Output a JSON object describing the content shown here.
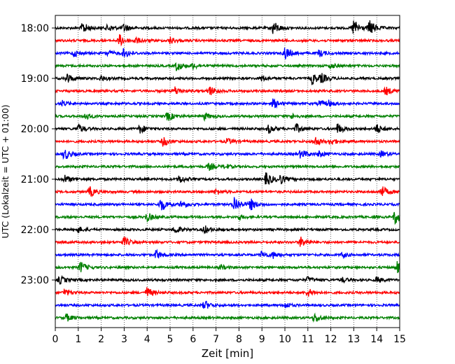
{
  "chart_data": {
    "type": "line",
    "title": "",
    "xlabel": "Zeit  [min]",
    "ylabel": "UTC (Lokalzeit = UTC + 01:00)",
    "xlim": [
      0,
      15
    ],
    "x_ticks": [
      "0",
      "1",
      "2",
      "3",
      "4",
      "5",
      "6",
      "7",
      "8",
      "9",
      "10",
      "11",
      "12",
      "13",
      "14",
      "15"
    ],
    "y_ticks": [
      "18:00",
      "19:00",
      "20:00",
      "21:00",
      "22:00",
      "23:00"
    ],
    "grid": "vertical dotted at each minute",
    "trace_colors": [
      "#000000",
      "#ff0000",
      "#0000ff",
      "#008000"
    ],
    "traces": [
      {
        "start": "18:00",
        "bursts": [
          [
            1.2,
            1.0
          ],
          [
            2.3,
            0.6
          ],
          [
            3.0,
            0.7
          ],
          [
            9.5,
            1.2
          ],
          [
            13.0,
            1.5
          ],
          [
            13.7,
            1.3
          ]
        ]
      },
      {
        "start": "18:15",
        "bursts": [
          [
            2.8,
            1.0
          ],
          [
            3.5,
            0.5
          ],
          [
            5.0,
            0.6
          ]
        ]
      },
      {
        "start": "18:30",
        "bursts": [
          [
            0.8,
            0.6
          ],
          [
            2.3,
            0.5
          ],
          [
            3.0,
            0.8
          ],
          [
            10.0,
            1.1
          ],
          [
            11.5,
            0.6
          ]
        ]
      },
      {
        "start": "18:45",
        "bursts": [
          [
            5.3,
            0.9
          ],
          [
            6.0,
            0.5
          ],
          [
            12.0,
            0.4
          ]
        ]
      },
      {
        "start": "19:00",
        "bursts": [
          [
            0.5,
            0.9
          ],
          [
            2.0,
            0.5
          ],
          [
            9.0,
            0.5
          ],
          [
            11.2,
            1.0
          ],
          [
            11.6,
            0.7
          ]
        ]
      },
      {
        "start": "19:15",
        "bursts": [
          [
            5.2,
            0.8
          ],
          [
            6.7,
            0.9
          ],
          [
            14.4,
            0.7
          ]
        ]
      },
      {
        "start": "19:30",
        "bursts": [
          [
            0.3,
            0.5
          ],
          [
            9.5,
            0.8
          ],
          [
            11.5,
            0.5
          ],
          [
            11.9,
            0.5
          ]
        ]
      },
      {
        "start": "19:45",
        "bursts": [
          [
            1.3,
            0.6
          ],
          [
            4.9,
            0.8
          ],
          [
            6.5,
            0.6
          ],
          [
            10.3,
            0.4
          ]
        ]
      },
      {
        "start": "20:00",
        "bursts": [
          [
            1.0,
            0.8
          ],
          [
            3.7,
            0.8
          ],
          [
            9.3,
            0.7
          ],
          [
            10.5,
            0.8
          ],
          [
            12.3,
            0.9
          ],
          [
            14.0,
            0.8
          ]
        ]
      },
      {
        "start": "20:15",
        "bursts": [
          [
            4.7,
            0.8
          ],
          [
            7.5,
            0.5
          ],
          [
            11.3,
            0.9
          ],
          [
            12.0,
            0.6
          ]
        ]
      },
      {
        "start": "20:30",
        "bursts": [
          [
            0.4,
            1.0
          ],
          [
            10.7,
            0.8
          ],
          [
            11.5,
            0.5
          ],
          [
            14.2,
            0.5
          ]
        ]
      },
      {
        "start": "20:45",
        "bursts": [
          [
            6.7,
            0.6
          ],
          [
            7.4,
            0.4
          ]
        ]
      },
      {
        "start": "21:00",
        "bursts": [
          [
            0.4,
            0.7
          ],
          [
            5.4,
            0.7
          ],
          [
            9.2,
            1.3
          ],
          [
            9.8,
            0.8
          ]
        ]
      },
      {
        "start": "21:15",
        "bursts": [
          [
            1.5,
            0.9
          ],
          [
            7.0,
            0.5
          ],
          [
            14.2,
            1.1
          ]
        ]
      },
      {
        "start": "21:30",
        "bursts": [
          [
            4.6,
            1.2
          ],
          [
            5.5,
            0.7
          ],
          [
            7.8,
            1.5
          ],
          [
            8.5,
            1.0
          ]
        ]
      },
      {
        "start": "21:45",
        "bursts": [
          [
            4.0,
            0.8
          ],
          [
            8.0,
            0.4
          ],
          [
            14.8,
            1.2
          ]
        ]
      },
      {
        "start": "22:00",
        "bursts": [
          [
            1.0,
            0.5
          ],
          [
            5.2,
            0.7
          ],
          [
            6.5,
            0.7
          ]
        ]
      },
      {
        "start": "22:15",
        "bursts": [
          [
            3.0,
            0.8
          ],
          [
            10.7,
            0.9
          ]
        ]
      },
      {
        "start": "22:30",
        "bursts": [
          [
            4.4,
            0.8
          ],
          [
            9.0,
            0.6
          ],
          [
            9.5,
            0.5
          ],
          [
            12.5,
            0.4
          ]
        ]
      },
      {
        "start": "22:45",
        "bursts": [
          [
            1.1,
            1.0
          ],
          [
            7.2,
            0.4
          ],
          [
            14.9,
            1.0
          ]
        ]
      },
      {
        "start": "23:00",
        "bursts": [
          [
            0.2,
            0.7
          ],
          [
            11.0,
            0.5
          ],
          [
            12.5,
            0.4
          ],
          [
            14.0,
            0.5
          ]
        ]
      },
      {
        "start": "23:15",
        "bursts": [
          [
            0.4,
            0.6
          ],
          [
            4.0,
            0.9
          ],
          [
            11.0,
            0.7
          ]
        ]
      },
      {
        "start": "23:30",
        "bursts": [
          [
            6.5,
            0.8
          ],
          [
            10.0,
            0.5
          ]
        ]
      },
      {
        "start": "23:45",
        "bursts": [
          [
            0.5,
            0.6
          ],
          [
            11.3,
            0.8
          ]
        ]
      }
    ]
  }
}
